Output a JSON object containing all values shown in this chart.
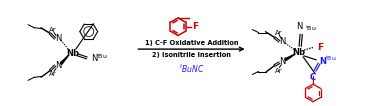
{
  "background_color": "#ffffff",
  "text_color": "#000000",
  "red_color": "#cc0000",
  "blue_color": "#1a1aff",
  "step1_text": "1) C-F Oxidative Addition",
  "step2_text": "2) Isonitrile Insertion",
  "reagent_text": "tBuNC",
  "figsize": [
    3.78,
    1.06
  ],
  "dpi": 100
}
